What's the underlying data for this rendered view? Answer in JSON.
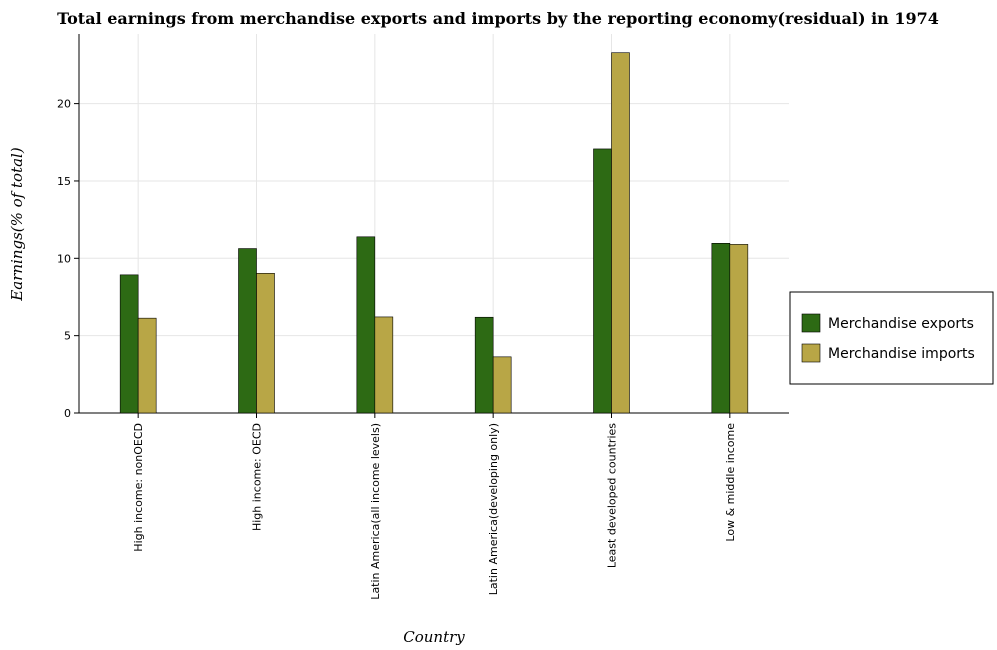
{
  "chart_data": {
    "type": "bar",
    "title": "Total earnings from merchandise exports and imports by the reporting economy(residual) in 1974",
    "xlabel": "Country",
    "ylabel": "Earnings(% of total)",
    "categories": [
      "High income: nonOECD",
      "High income: OECD",
      "Latin America(all income levels)",
      "Latin America(developing only)",
      "Least developed countries",
      "Low & middle income"
    ],
    "ylim": [
      0,
      24.5
    ],
    "yticks": [
      0,
      5,
      10,
      15,
      20
    ],
    "grid": true,
    "legend_position": "right",
    "series": [
      {
        "name": "Merchandise exports",
        "color": "#2d6a14",
        "values": [
          8.93,
          10.63,
          11.39,
          6.19,
          17.07,
          10.97
        ]
      },
      {
        "name": "Merchandise imports",
        "color": "#b8a646",
        "values": [
          6.13,
          9.03,
          6.21,
          3.63,
          23.29,
          10.9
        ]
      }
    ]
  }
}
